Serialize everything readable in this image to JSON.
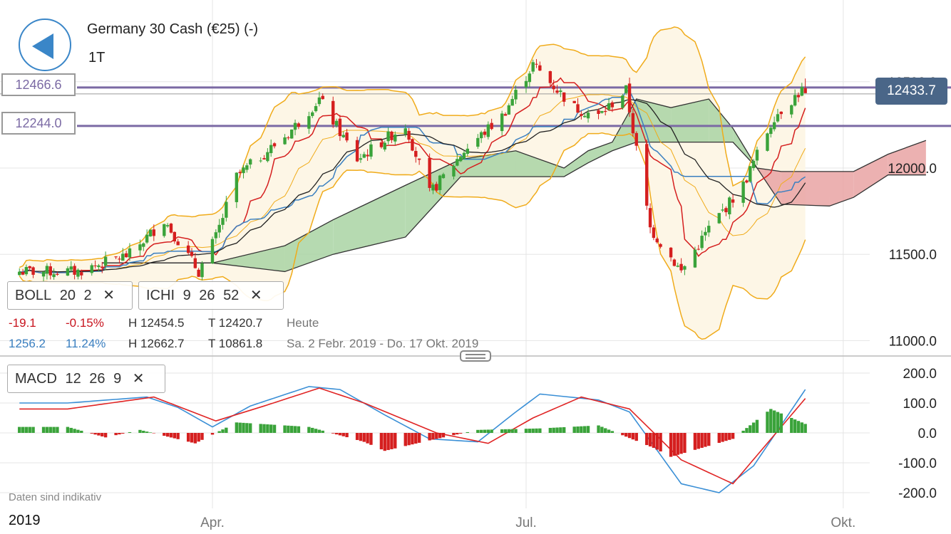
{
  "header": {
    "title": "Germany 30 Cash (€25) (-)",
    "timeframe": "1T"
  },
  "levels": [
    {
      "label": "12466.6",
      "value": 12466.6,
      "color": "#7b6aa4"
    },
    {
      "label": "12244.0",
      "value": 12244.0,
      "color": "#7b6aa4"
    }
  ],
  "last_price": {
    "label": "12433.7",
    "value": 12433.7,
    "color": "#4a6688"
  },
  "indicators": {
    "boll": {
      "name": "BOLL",
      "p1": "20",
      "p2": "2"
    },
    "ichi": {
      "name": "ICHI",
      "p1": "9",
      "p2": "26",
      "p3": "52"
    },
    "macd": {
      "name": "MACD",
      "p1": "12",
      "p2": "26",
      "p3": "9"
    }
  },
  "stats": {
    "change_abs": "-19.1",
    "change_pct": "-0.15%",
    "day_high": "H 12454.5",
    "day_low": "T 12420.7",
    "day_label": "Heute",
    "range_abs": "1256.2",
    "range_pct": "11.24%",
    "range_high": "H 12662.7",
    "range_low": "T 10861.8",
    "range_label": "Sa. 2 Febr. 2019 - Do. 17 Okt. 2019"
  },
  "footnote": "Daten sind indikativ",
  "year_label": "2019",
  "colors": {
    "up": "#3aa33a",
    "down": "#d51f1f",
    "boll": "#f0ab1a",
    "boll_fill": "#fdf6e6",
    "tenkan": "#d51f1f",
    "kijun": "#3a7fc0",
    "chikou": "#222222",
    "kumo_bull": "#a9d4a3",
    "kumo_bear": "#e9a3a3",
    "macd_line": "#3a8fd6",
    "signal_line": "#e02424",
    "level_line": "#7b6aa4",
    "grid": "#e5e5e5"
  },
  "chart_data": [
    {
      "type": "candlestick",
      "title": "Germany 30 Cash (€25) (-)",
      "ylim": [
        10900,
        12750
      ],
      "y_ticks": [
        12500,
        12000,
        11500,
        11000
      ],
      "y_tick_labels": [
        "12500.0",
        "12000.0",
        "11500.0",
        "11000.0"
      ],
      "x_ticks": [
        "Apr.",
        "Jul.",
        "Okt."
      ],
      "grid": true,
      "price_anchors": [
        [
          "2019-02-21",
          11400
        ],
        [
          "2019-03-08",
          11500
        ],
        [
          "2019-03-18",
          11700
        ],
        [
          "2019-03-28",
          11400
        ],
        [
          "2019-04-02",
          11600
        ],
        [
          "2019-04-08",
          11950
        ],
        [
          "2019-04-23",
          12200
        ],
        [
          "2019-05-02",
          12400
        ],
        [
          "2019-05-13",
          12050
        ],
        [
          "2019-05-27",
          12250
        ],
        [
          "2019-06-03",
          11850
        ],
        [
          "2019-06-13",
          12100
        ],
        [
          "2019-06-24",
          12300
        ],
        [
          "2019-07-03",
          12600
        ],
        [
          "2019-07-15",
          12350
        ],
        [
          "2019-07-22",
          12300
        ],
        [
          "2019-07-30",
          12450
        ],
        [
          "2019-08-06",
          11650
        ],
        [
          "2019-08-15",
          11400
        ],
        [
          "2019-08-23",
          11650
        ],
        [
          "2019-09-02",
          11900
        ],
        [
          "2019-09-11",
          12300
        ],
        [
          "2019-09-20",
          12470
        ]
      ],
      "cloud_anchors": [
        [
          "2019-02-28",
          11450,
          11450
        ],
        [
          "2019-04-01",
          11450,
          11450
        ],
        [
          "2019-04-22",
          11550,
          11400
        ],
        [
          "2019-05-06",
          11700,
          11500
        ],
        [
          "2019-05-27",
          11900,
          11600
        ],
        [
          "2019-06-12",
          12050,
          11950
        ],
        [
          "2019-06-28",
          12100,
          11950
        ],
        [
          "2019-07-12",
          12000,
          11950
        ],
        [
          "2019-07-19",
          12100,
          12030
        ],
        [
          "2019-07-26",
          12150,
          12100
        ],
        [
          "2019-08-02",
          12400,
          12150
        ],
        [
          "2019-08-12",
          12350,
          12150
        ],
        [
          "2019-08-23",
          12400,
          12150
        ],
        [
          "2019-08-30",
          12230,
          12150
        ],
        [
          "2019-09-06",
          12000,
          12000
        ],
        [
          "2019-09-13",
          11980,
          11790
        ],
        [
          "2019-09-27",
          11980,
          11780
        ],
        [
          "2019-10-04",
          11980,
          11830
        ],
        [
          "2019-10-14",
          12080,
          11960
        ],
        [
          "2019-10-25",
          12160,
          11960
        ]
      ]
    },
    {
      "type": "line",
      "title": "MACD",
      "ylim": [
        -230,
        210
      ],
      "y_ticks": [
        200,
        100,
        0,
        -100,
        -200
      ],
      "y_tick_labels": [
        "200.0",
        "100.0",
        "0.0",
        "-100.0",
        "-200.0"
      ],
      "series": [
        {
          "name": "MACD",
          "anchors": [
            [
              "2019-02-18",
              100
            ],
            [
              "2019-03-13",
              120
            ],
            [
              "2019-03-22",
              85
            ],
            [
              "2019-04-01",
              20
            ],
            [
              "2019-04-12",
              90
            ],
            [
              "2019-04-29",
              155
            ],
            [
              "2019-05-08",
              145
            ],
            [
              "2019-05-21",
              60
            ],
            [
              "2019-06-03",
              -20
            ],
            [
              "2019-06-17",
              -30
            ],
            [
              "2019-06-28",
              70
            ],
            [
              "2019-07-05",
              130
            ],
            [
              "2019-07-22",
              110
            ],
            [
              "2019-07-31",
              70
            ],
            [
              "2019-08-15",
              -170
            ],
            [
              "2019-08-26",
              -200
            ],
            [
              "2019-09-05",
              -110
            ],
            [
              "2019-09-20",
              145
            ]
          ]
        },
        {
          "name": "Signal",
          "anchors": [
            [
              "2019-02-18",
              80
            ],
            [
              "2019-03-15",
              120
            ],
            [
              "2019-04-02",
              40
            ],
            [
              "2019-04-16",
              90
            ],
            [
              "2019-05-02",
              150
            ],
            [
              "2019-05-15",
              100
            ],
            [
              "2019-06-05",
              0
            ],
            [
              "2019-06-20",
              -35
            ],
            [
              "2019-07-03",
              50
            ],
            [
              "2019-07-17",
              120
            ],
            [
              "2019-07-31",
              80
            ],
            [
              "2019-08-15",
              -90
            ],
            [
              "2019-08-30",
              -170
            ],
            [
              "2019-09-20",
              115
            ]
          ]
        },
        {
          "name": "Histogram",
          "anchors": [
            [
              "2019-02-18",
              20
            ],
            [
              "2019-03-01",
              -15
            ],
            [
              "2019-03-11",
              10
            ],
            [
              "2019-03-27",
              -35
            ],
            [
              "2019-04-08",
              35
            ],
            [
              "2019-04-29",
              20
            ],
            [
              "2019-05-15",
              -30
            ],
            [
              "2019-05-21",
              -60
            ],
            [
              "2019-06-03",
              -25
            ],
            [
              "2019-06-17",
              10
            ],
            [
              "2019-07-05",
              15
            ],
            [
              "2019-07-22",
              25
            ],
            [
              "2019-08-07",
              -50
            ],
            [
              "2019-08-12",
              -80
            ],
            [
              "2019-08-30",
              -20
            ],
            [
              "2019-09-10",
              80
            ],
            [
              "2019-09-20",
              30
            ]
          ]
        }
      ]
    }
  ]
}
